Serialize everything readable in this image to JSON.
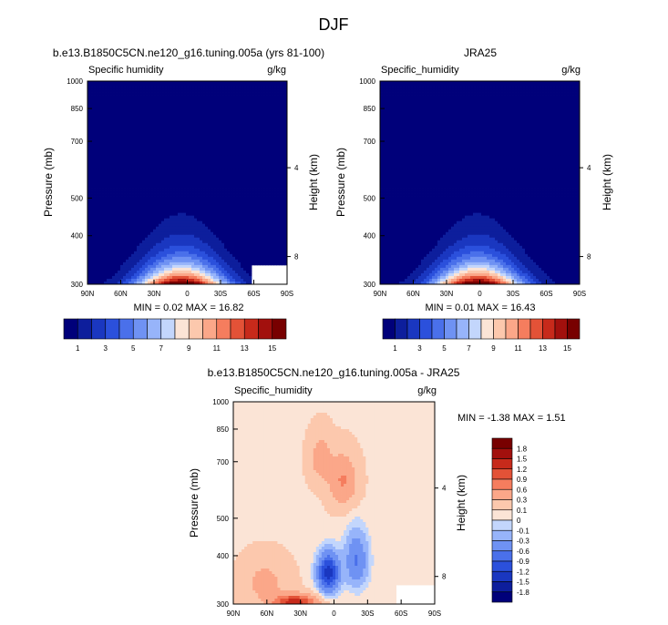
{
  "figure_title": "DJF",
  "chart_data": [
    {
      "type": "heatmap",
      "id": "model",
      "title": "b.e13.B1850C5CN.ne120_g16.tuning.005a (yrs 81-100)",
      "left_label": "Specific humidity",
      "right_label": "g/kg",
      "ylabel": "Pressure (mb)",
      "y2label": "Height (km)",
      "x_ticks": [
        "90N",
        "60N",
        "30N",
        "0",
        "30S",
        "60S",
        "90S"
      ],
      "x_values": [
        90,
        60,
        30,
        0,
        -30,
        -60,
        -90
      ],
      "y_ticks": [
        "300",
        "400",
        "500",
        "700",
        "850",
        "1000"
      ],
      "y_values": [
        300,
        400,
        500,
        700,
        850,
        1000
      ],
      "y2_ticks": [
        "8",
        "4"
      ],
      "y2_values": [
        8,
        4
      ],
      "min_max": "MIN =  0.02  MAX =  16.82",
      "levels": [
        1,
        2,
        3,
        4,
        5,
        6,
        7,
        8,
        9,
        10,
        11,
        12,
        13,
        14,
        15
      ],
      "colorbar_labels": [
        "1",
        "3",
        "5",
        "7",
        "9",
        "11",
        "13",
        "15"
      ],
      "min": 0.02,
      "max": 16.82
    },
    {
      "type": "heatmap",
      "id": "obs",
      "title": "JRA25",
      "left_label": "Specific_humidity",
      "right_label": "g/kg",
      "ylabel": "Pressure (mb)",
      "y2label": "Height (km)",
      "x_ticks": [
        "90N",
        "60N",
        "30N",
        "0",
        "30S",
        "60S",
        "90S"
      ],
      "x_values": [
        90,
        60,
        30,
        0,
        -30,
        -60,
        -90
      ],
      "y_ticks": [
        "300",
        "400",
        "500",
        "700",
        "850",
        "1000"
      ],
      "y_values": [
        300,
        400,
        500,
        700,
        850,
        1000
      ],
      "y2_ticks": [
        "8",
        "4"
      ],
      "y2_values": [
        8,
        4
      ],
      "min_max": "MIN =  0.01  MAX =  16.43",
      "levels": [
        1,
        2,
        3,
        4,
        5,
        6,
        7,
        8,
        9,
        10,
        11,
        12,
        13,
        14,
        15
      ],
      "colorbar_labels": [
        "1",
        "3",
        "5",
        "7",
        "9",
        "11",
        "13",
        "15"
      ],
      "min": 0.01,
      "max": 16.43
    },
    {
      "type": "heatmap",
      "id": "diff",
      "title": "b.e13.B1850C5CN.ne120_g16.tuning.005a - JRA25",
      "left_label": "Specific_humidity",
      "right_label": "g/kg",
      "ylabel": "Pressure (mb)",
      "y2label": "Height (km)",
      "x_ticks": [
        "90N",
        "60N",
        "30N",
        "0",
        "30S",
        "60S",
        "90S"
      ],
      "x_values": [
        90,
        60,
        30,
        0,
        -30,
        -60,
        -90
      ],
      "y_ticks": [
        "300",
        "400",
        "500",
        "700",
        "850",
        "1000"
      ],
      "y_values": [
        300,
        400,
        500,
        700,
        850,
        1000
      ],
      "y2_ticks": [
        "8",
        "4"
      ],
      "y2_values": [
        8,
        4
      ],
      "min_max": "MIN = -1.38   MAX =   1.51",
      "levels": [
        -1.8,
        -1.5,
        -1.2,
        -0.9,
        -0.6,
        -0.3,
        -0.1,
        0,
        0.1,
        0.3,
        0.6,
        0.9,
        1.2,
        1.5,
        1.8
      ],
      "colorbar_labels": [
        "-1.8",
        "-1.5",
        "-1.2",
        "-0.9",
        "-0.6",
        "-0.3",
        "-0.1",
        "0",
        "0.1",
        "0.3",
        "0.6",
        "0.9",
        "1.2",
        "1.5",
        "1.8"
      ],
      "min": -1.38,
      "max": 1.51
    }
  ],
  "palette": [
    "#00007a",
    "#0d1e9c",
    "#1a37c0",
    "#2b50dc",
    "#4a70ea",
    "#6f92f3",
    "#97b4fa",
    "#c3d6fc",
    "#fbe4d6",
    "#fcc8ad",
    "#fba789",
    "#f57d5e",
    "#e35237",
    "#c72a1b",
    "#a2100d",
    "#780000"
  ]
}
